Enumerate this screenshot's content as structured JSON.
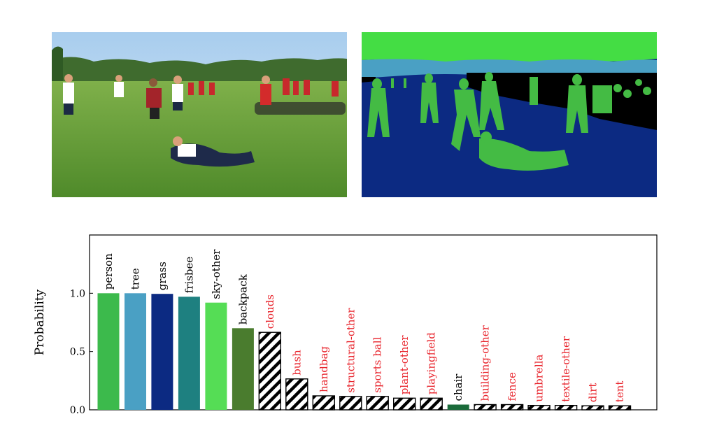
{
  "photo": {
    "alt": ""
  },
  "segmentation": {
    "alt": ""
  },
  "colors": {
    "sky": "#44dd44",
    "tree_band": "#4aa0c4",
    "grass": "#0c2a82",
    "person": "#44bb44",
    "black": "#000000",
    "label_red": "#e8242c",
    "label_black": "#000000"
  },
  "chart_data": {
    "type": "bar",
    "title": "",
    "xlabel": "",
    "ylabel": "Probability",
    "ylim": [
      0,
      1.5
    ],
    "yticks": [
      "0.0",
      "0.5",
      "1.0"
    ],
    "grid": false,
    "categories": [
      "person",
      "tree",
      "grass",
      "frisbee",
      "sky-other",
      "backpack",
      "clouds",
      "bush",
      "handbag",
      "structural-other",
      "sports ball",
      "plant-other",
      "playingfield",
      "chair",
      "building-other",
      "fence",
      "umbrella",
      "textile-other",
      "dirt",
      "tent"
    ],
    "values": [
      1.0,
      1.0,
      0.995,
      0.97,
      0.92,
      0.7,
      0.665,
      0.265,
      0.12,
      0.115,
      0.115,
      0.1,
      0.1,
      0.045,
      0.045,
      0.045,
      0.038,
      0.038,
      0.035,
      0.035
    ],
    "bar_styles": [
      "solid",
      "solid",
      "solid",
      "solid",
      "solid",
      "solid",
      "hatched",
      "hatched",
      "hatched",
      "hatched",
      "hatched",
      "hatched",
      "hatched",
      "solid",
      "hatched",
      "hatched",
      "hatched",
      "hatched",
      "hatched",
      "hatched"
    ],
    "bar_colors": [
      "#3cba4c",
      "#4aa0c4",
      "#0c2a82",
      "#1e8080",
      "#55dd55",
      "#4a7c2e",
      "",
      "",
      "",
      "",
      "",
      "",
      "",
      "#1a6b3a",
      "",
      "",
      "",
      "",
      "",
      ""
    ],
    "label_colors": [
      "#000000",
      "#000000",
      "#000000",
      "#000000",
      "#000000",
      "#000000",
      "#e8242c",
      "#e8242c",
      "#e8242c",
      "#e8242c",
      "#e8242c",
      "#e8242c",
      "#e8242c",
      "#000000",
      "#e8242c",
      "#e8242c",
      "#e8242c",
      "#e8242c",
      "#e8242c",
      "#e8242c"
    ]
  }
}
